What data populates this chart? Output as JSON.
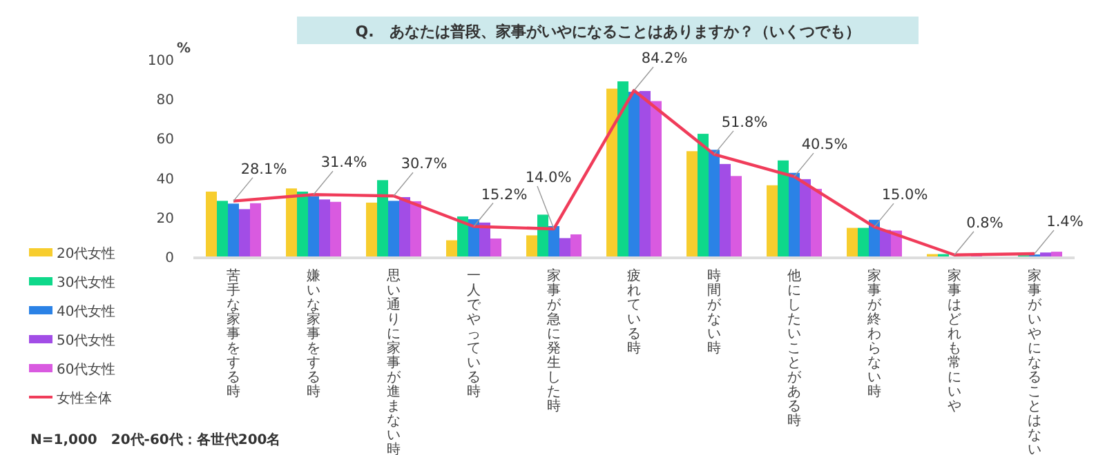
{
  "chart_data": {
    "type": "bar",
    "title": "Q.　あなたは普段、家事がいやになることはありますか？（いくつでも）",
    "ylabel": "%",
    "categories": [
      "苦手な家事をする時",
      "嫌いな家事をする時",
      "思い通りに家事が進まない時",
      "一人でやっている時",
      "家事が急に発生した時",
      "疲れている時",
      "時間がない時",
      "他にしたいことがある時",
      "家事が終わらない時",
      "家事はどれも常にいや",
      "家事がいやになることはない"
    ],
    "series": [
      {
        "name": "20代女性",
        "color": "#f7cd2e",
        "values": [
          32.9,
          34.5,
          27.3,
          8.2,
          10.7,
          85.1,
          53.4,
          36.1,
          14.5,
          1.2,
          null
        ]
      },
      {
        "name": "30代女性",
        "color": "#0ed88a",
        "values": [
          28.2,
          32.9,
          38.7,
          20.3,
          21.2,
          88.8,
          62.2,
          48.7,
          14.5,
          1.2,
          0.6
        ]
      },
      {
        "name": "40代女性",
        "color": "#2b82e6",
        "values": [
          26.8,
          30.5,
          28.2,
          18.9,
          15.4,
          83.5,
          54.1,
          42.4,
          18.6,
          null,
          1.0
        ]
      },
      {
        "name": "50代女性",
        "color": "#a24de6",
        "values": [
          24.0,
          28.9,
          30.1,
          17.2,
          9.3,
          83.9,
          46.9,
          39.2,
          13.5,
          null,
          2.0
        ]
      },
      {
        "name": "60代女性",
        "color": "#d95ae0",
        "values": [
          27.0,
          27.7,
          28.0,
          9.1,
          11.2,
          78.8,
          40.8,
          34.3,
          13.1,
          0.3,
          2.4
        ]
      },
      {
        "name": "女性全体",
        "color": "#f03c5a",
        "type": "line",
        "values": [
          28.1,
          31.4,
          30.7,
          15.2,
          14.0,
          84.2,
          51.8,
          40.5,
          15.0,
          0.8,
          1.4
        ],
        "value_labels": [
          "28.1%",
          "31.4%",
          "30.7%",
          "15.2%",
          "14.0%",
          "84.2%",
          "51.8%",
          "40.5%",
          "15.0%",
          "0.8%",
          "1.4%"
        ]
      }
    ],
    "ylim": [
      0,
      100
    ],
    "yticks": [
      0,
      20,
      40,
      60,
      80,
      100
    ],
    "grid": false,
    "legend": "left",
    "annotations": [
      "N=1,000　20代-60代：各世代200名"
    ]
  }
}
